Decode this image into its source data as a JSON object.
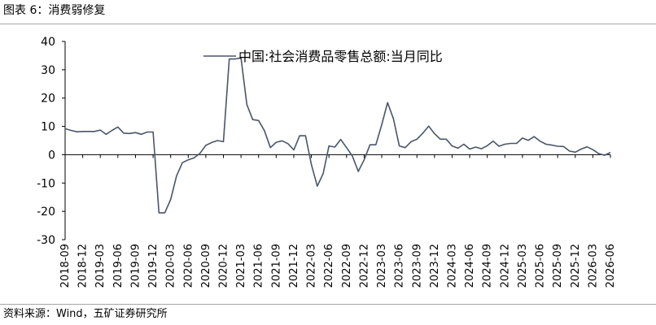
{
  "header": {
    "title": "图表 6：消费弱修复"
  },
  "footer": {
    "source": "资料来源：Wind，五矿证券研究所"
  },
  "chart_data": {
    "type": "line",
    "title": "",
    "xlabel": "",
    "ylabel": "",
    "ylim": [
      -30,
      40
    ],
    "yticks": [
      40,
      30,
      20,
      10,
      0,
      -10,
      -20,
      -30
    ],
    "x_tick_labels": [
      "2018-09",
      "2018-12",
      "2019-03",
      "2019-06",
      "2019-09",
      "2019-12",
      "2020-03",
      "2020-06",
      "2020-09",
      "2020-12",
      "2021-03",
      "2021-06",
      "2021-09",
      "2021-12",
      "2022-03",
      "2022-06",
      "2022-09",
      "2022-12",
      "2023-03",
      "2023-06",
      "2023-09",
      "2023-12",
      "2024-03",
      "2024-06",
      "2024-09",
      "2024-12",
      "2025-03",
      "2025-06",
      "2025-09",
      "2025-12",
      "2026-03",
      "2026-06"
    ],
    "legend": {
      "position": "top-center"
    },
    "grid": false,
    "series": [
      {
        "name": "中国:社会消费品零售总额:当月同比",
        "color": "#4a5568",
        "x": [
          "2018-09",
          "2018-10",
          "2018-11",
          "2018-12",
          "2019-01",
          "2019-02",
          "2019-03",
          "2019-04",
          "2019-05",
          "2019-06",
          "2019-07",
          "2019-08",
          "2019-09",
          "2019-10",
          "2019-11",
          "2019-12",
          "2020-01",
          "2020-02",
          "2020-03",
          "2020-04",
          "2020-05",
          "2020-06",
          "2020-07",
          "2020-08",
          "2020-09",
          "2020-10",
          "2020-11",
          "2020-12",
          "2021-01",
          "2021-02",
          "2021-03",
          "2021-04",
          "2021-05",
          "2021-06",
          "2021-07",
          "2021-08",
          "2021-09",
          "2021-10",
          "2021-11",
          "2021-12",
          "2022-01",
          "2022-02",
          "2022-03",
          "2022-04",
          "2022-05",
          "2022-06",
          "2022-07",
          "2022-08",
          "2022-09",
          "2022-10",
          "2022-11",
          "2022-12",
          "2023-01",
          "2023-02",
          "2023-03",
          "2023-04",
          "2023-05",
          "2023-06",
          "2023-07",
          "2023-08",
          "2023-09",
          "2023-10",
          "2023-11",
          "2023-12",
          "2024-01",
          "2024-02",
          "2024-03",
          "2024-04",
          "2024-05",
          "2024-06",
          "2024-07",
          "2024-08",
          "2024-09",
          "2024-10",
          "2024-11",
          "2024-12",
          "2025-01",
          "2025-02",
          "2025-03",
          "2025-04",
          "2025-05",
          "2025-06",
          "2025-07",
          "2025-08",
          "2025-09",
          "2025-10",
          "2025-11",
          "2025-12",
          "2026-01",
          "2026-02",
          "2026-03",
          "2026-04",
          "2026-05",
          "2026-06"
        ],
        "values": [
          9.2,
          8.6,
          8.1,
          8.2,
          8.2,
          8.2,
          8.7,
          7.2,
          8.6,
          9.8,
          7.6,
          7.5,
          7.8,
          7.2,
          8.0,
          8.0,
          -20.5,
          -20.5,
          -15.8,
          -7.5,
          -2.8,
          -1.8,
          -1.1,
          0.5,
          3.3,
          4.3,
          5.0,
          4.6,
          33.8,
          33.8,
          34.2,
          17.7,
          12.4,
          12.1,
          8.5,
          2.5,
          4.4,
          4.9,
          3.9,
          1.7,
          6.7,
          6.7,
          -3.5,
          -11.1,
          -6.7,
          3.1,
          2.7,
          5.4,
          2.5,
          -0.5,
          -5.9,
          -1.8,
          3.5,
          3.5,
          10.6,
          18.4,
          12.7,
          3.1,
          2.5,
          4.6,
          5.5,
          7.6,
          10.1,
          7.4,
          5.5,
          5.5,
          3.1,
          2.3,
          3.7,
          2.0,
          2.7,
          2.1,
          3.2,
          4.8,
          3.0,
          3.7,
          4.0,
          4.0,
          5.9,
          5.1,
          6.4,
          4.8,
          3.7,
          3.4,
          3.0,
          2.9,
          1.3,
          0.9,
          2.0,
          2.8,
          1.8,
          0.4,
          -0.2,
          0.8
        ]
      }
    ]
  }
}
